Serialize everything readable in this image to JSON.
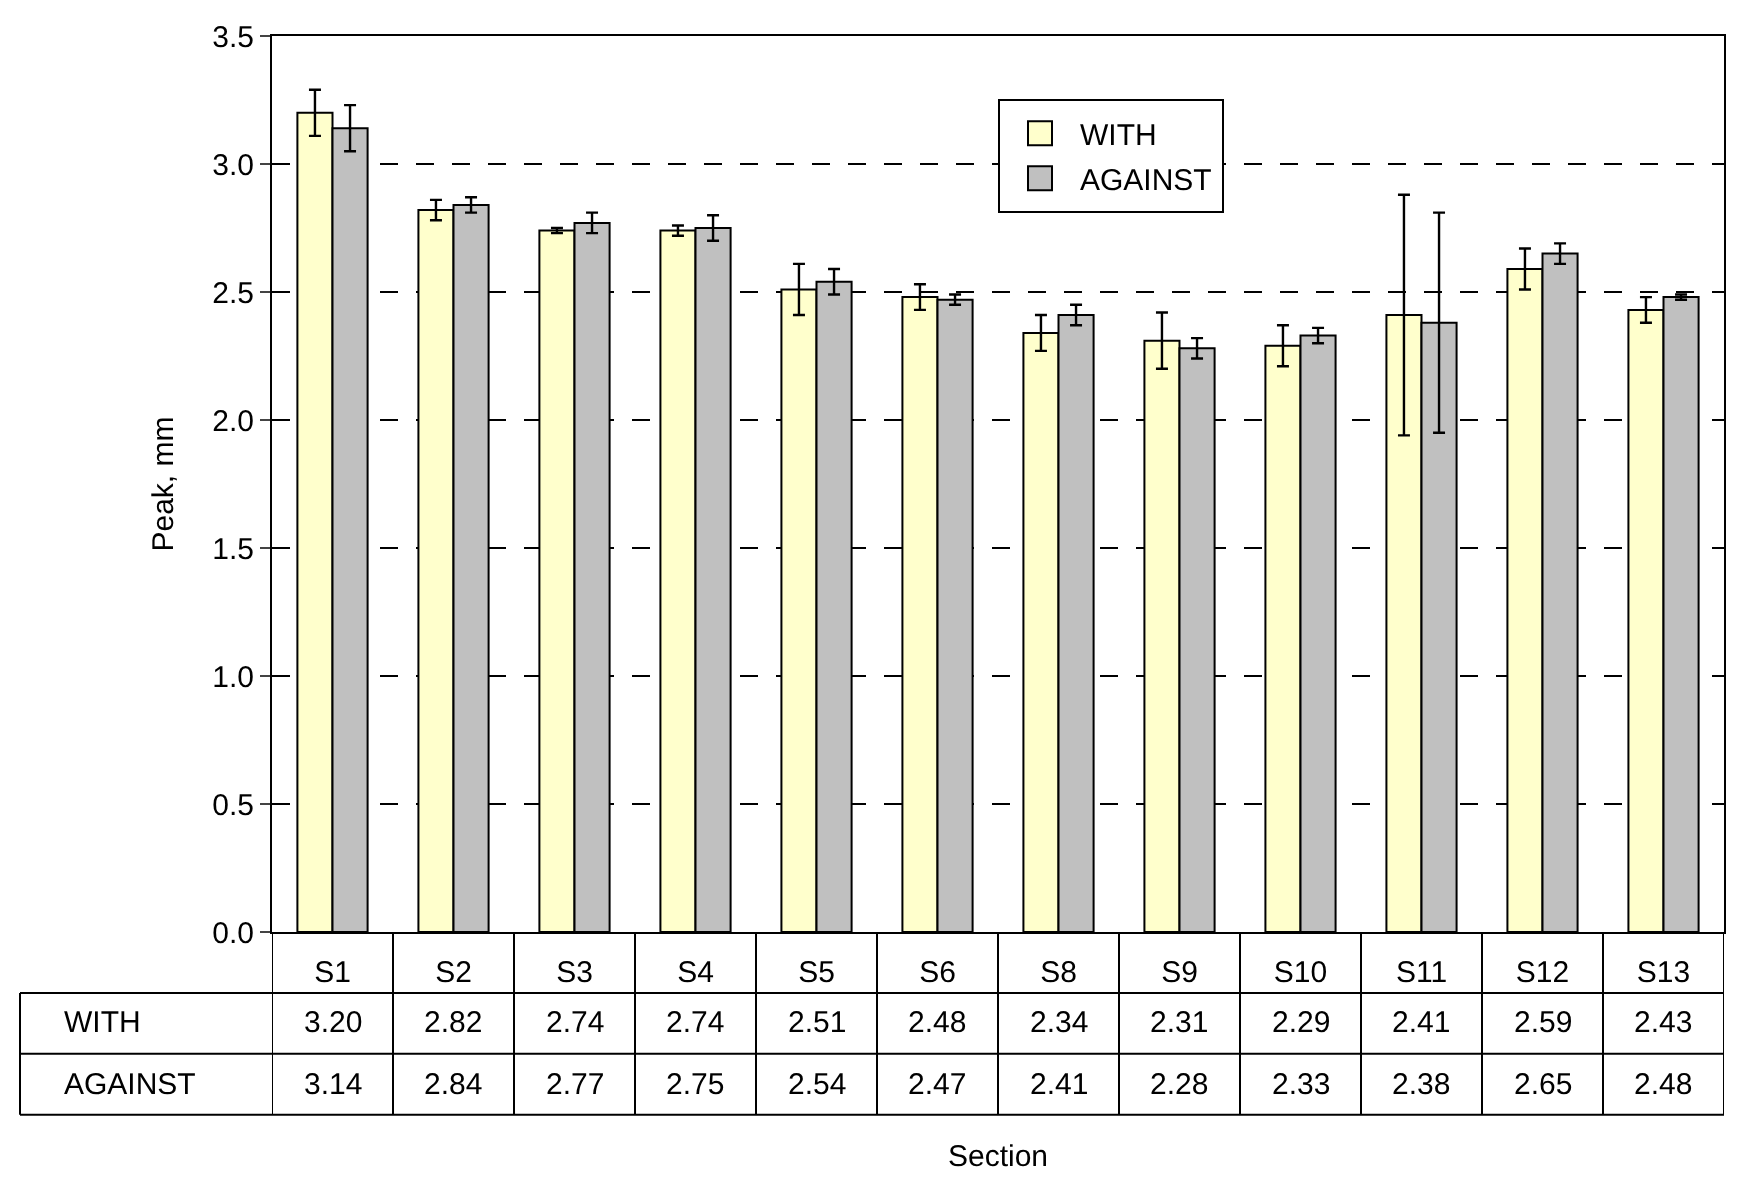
{
  "chart_data": {
    "type": "bar",
    "ylabel": "Peak, mm",
    "xlabel": "Section",
    "categories": [
      "S1",
      "S2",
      "S3",
      "S4",
      "S5",
      "S6",
      "S8",
      "S9",
      "S10",
      "S11",
      "S12",
      "S13"
    ],
    "series": [
      {
        "name": "WITH",
        "color": "#ffffcc",
        "values": [
          3.2,
          2.82,
          2.74,
          2.74,
          2.51,
          2.48,
          2.34,
          2.31,
          2.29,
          2.41,
          2.59,
          2.43
        ],
        "value_labels": [
          "3.20",
          "2.82",
          "2.74",
          "2.74",
          "2.51",
          "2.48",
          "2.34",
          "2.31",
          "2.29",
          "2.41",
          "2.59",
          "2.43"
        ],
        "errors": [
          0.09,
          0.04,
          0.01,
          0.02,
          0.1,
          0.05,
          0.07,
          0.11,
          0.08,
          0.47,
          0.08,
          0.05
        ]
      },
      {
        "name": "AGAINST",
        "color": "#c0c0c0",
        "values": [
          3.14,
          2.84,
          2.77,
          2.75,
          2.54,
          2.47,
          2.41,
          2.28,
          2.33,
          2.38,
          2.65,
          2.48
        ],
        "value_labels": [
          "3.14",
          "2.84",
          "2.77",
          "2.75",
          "2.54",
          "2.47",
          "2.41",
          "2.28",
          "2.33",
          "2.38",
          "2.65",
          "2.48"
        ],
        "errors": [
          0.09,
          0.03,
          0.04,
          0.05,
          0.05,
          0.02,
          0.04,
          0.04,
          0.03,
          0.43,
          0.04,
          0.01
        ]
      }
    ],
    "ylim": [
      0,
      3.5
    ],
    "yticks": [
      {
        "value": 0,
        "label": "0.0"
      },
      {
        "value": 0.5,
        "label": "0.5"
      },
      {
        "value": 1,
        "label": "1.0"
      },
      {
        "value": 1.5,
        "label": "1.5"
      },
      {
        "value": 2,
        "label": "2.0"
      },
      {
        "value": 2.5,
        "label": "2.5"
      },
      {
        "value": 3,
        "label": "3.0"
      },
      {
        "value": 3.5,
        "label": "3.5"
      }
    ],
    "grid": "y",
    "legend": "top"
  }
}
